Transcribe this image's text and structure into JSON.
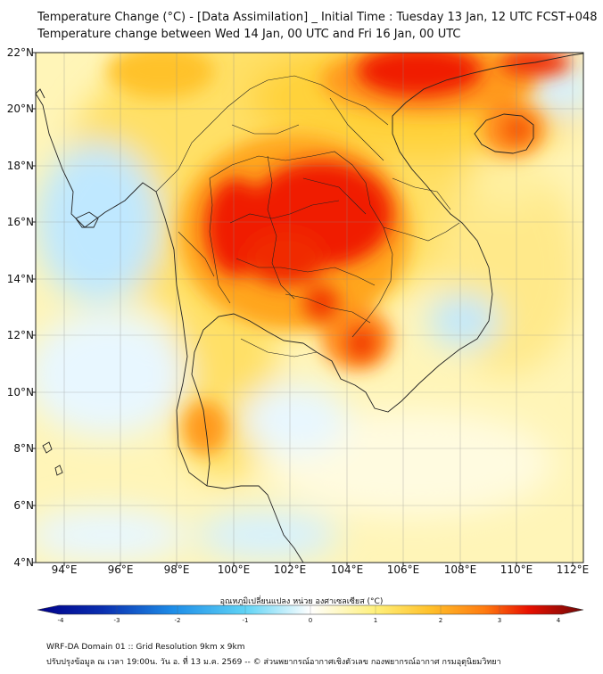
{
  "title": {
    "line1": "Temperature Change (°C) - [Data Assimilation] _ Initial Time : Tuesday 13 Jan, 12 UTC FCST+048",
    "line2": "Temperature change between Wed 14 Jan, 00 UTC and Fri 16 Jan, 00 UTC"
  },
  "lat_labels": [
    "22°N",
    "20°N",
    "18°N",
    "16°N",
    "14°N",
    "12°N",
    "10°N",
    "8°N",
    "6°N",
    "4°N"
  ],
  "lon_labels": [
    "94°E",
    "96°E",
    "98°E",
    "100°E",
    "102°E",
    "104°E",
    "106°E",
    "108°E",
    "110°E",
    "112°E"
  ],
  "colorbar": {
    "label": "อุณหภูมิเปลี่ยนแปลง หน่วย องศาเซลเซียส (°C)",
    "ticks": [
      "-4",
      "-3",
      "-2",
      "-1",
      "0",
      "1",
      "2",
      "3",
      "4"
    ],
    "min": -4,
    "max": 4
  },
  "footer": {
    "line1": "WRF-DA Domain 01 :: Grid Resolution 9km x 9km",
    "line2": "ปรับปรุงข้อมูล ณ เวลา 19:00น. วัน อ. ที่ 13 ม.ค. 2569 -- © ส่วนพยากรณ์อากาศเชิงตัวเลข กองพยากรณ์อากาศ กรมอุตุนิยมวิทยา"
  },
  "colors": {
    "cold": "#0a2fb0",
    "neutral": "#ffffff",
    "warm": "#ffd23a",
    "hot": "#e81000",
    "hottest": "#7a0a0a"
  }
}
